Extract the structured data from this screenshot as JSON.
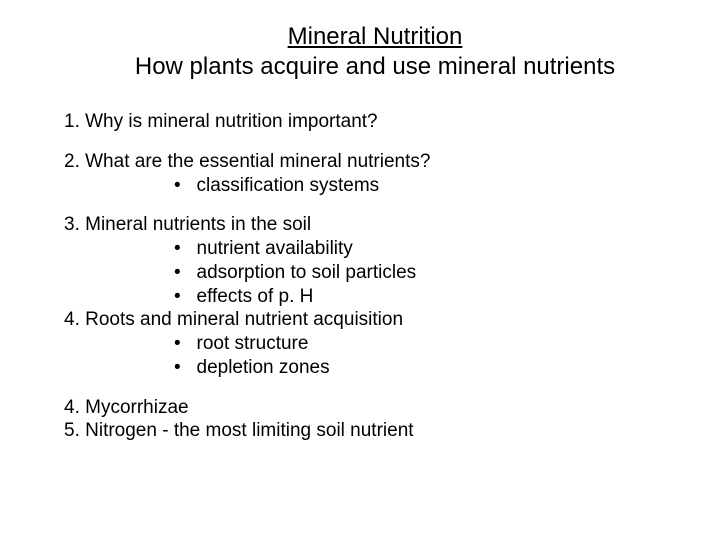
{
  "title": "Mineral Nutrition",
  "subtitle": "How plants acquire and use mineral nutrients",
  "sections": {
    "s1": {
      "heading": "1. Why is mineral nutrition important?"
    },
    "s2": {
      "heading": "2. What are the essential mineral nutrients?",
      "bullets": [
        "classification systems"
      ]
    },
    "s3": {
      "heading": "3. Mineral nutrients in the soil",
      "bullets": [
        "nutrient availability",
        "adsorption to soil particles",
        "effects of p. H"
      ]
    },
    "s4": {
      "heading": "4. Roots and mineral nutrient acquisition",
      "bullets": [
        "root structure",
        "depletion zones"
      ]
    },
    "s5": {
      "heading": "4. Mycorrhizae"
    },
    "s6": {
      "heading": "5. Nitrogen - the most limiting soil nutrient"
    }
  },
  "style": {
    "background_color": "#ffffff",
    "text_color": "#000000",
    "title_fontsize": 24,
    "body_fontsize": 19,
    "font_family": "Comic Sans MS"
  }
}
